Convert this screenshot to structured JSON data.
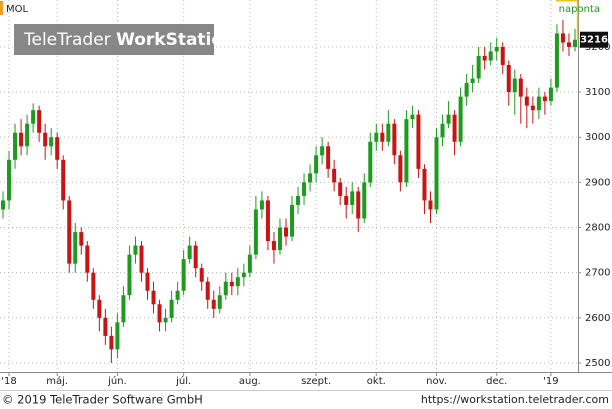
{
  "chart_data": {
    "type": "candlestick",
    "title": "MOL",
    "subtitle": "naponta",
    "logo_brand": "TeleTrader",
    "logo_product": "WorkStation",
    "categories": [
      null,
      "'18",
      null,
      null,
      null,
      null,
      null,
      null,
      null,
      "máj.",
      null,
      null,
      null,
      null,
      null,
      null,
      null,
      null,
      null,
      "jún.",
      null,
      null,
      null,
      null,
      null,
      null,
      null,
      null,
      null,
      null,
      "júl.",
      null,
      null,
      null,
      null,
      null,
      null,
      null,
      null,
      null,
      null,
      "aug.",
      null,
      null,
      null,
      null,
      null,
      null,
      null,
      null,
      null,
      null,
      "szept.",
      null,
      null,
      null,
      null,
      null,
      null,
      null,
      null,
      null,
      "okt.",
      null,
      null,
      null,
      null,
      null,
      null,
      null,
      null,
      null,
      "nov.",
      null,
      null,
      null,
      null,
      null,
      null,
      null,
      null,
      null,
      "dec.",
      null,
      null,
      null,
      null,
      null,
      null,
      null,
      null,
      "'19",
      null,
      null,
      null,
      null
    ],
    "open": [
      2840,
      2860,
      2950,
      3010,
      2980,
      3030,
      3060,
      3010,
      2980,
      3000,
      2950,
      2860,
      2720,
      2790,
      2760,
      2700,
      2640,
      2600,
      2560,
      2530,
      2590,
      2650,
      2740,
      2760,
      2700,
      2660,
      2630,
      2590,
      2600,
      2640,
      2660,
      2730,
      2760,
      2710,
      2680,
      2640,
      2620,
      2650,
      2680,
      2670,
      2690,
      2700,
      2740,
      2840,
      2860,
      2770,
      2750,
      2800,
      2780,
      2850,
      2870,
      2900,
      2920,
      2960,
      2980,
      2930,
      2900,
      2870,
      2850,
      2880,
      2820,
      2900,
      2990,
      3010,
      2990,
      3030,
      2960,
      2900,
      3040,
      3050,
      2930,
      2860,
      2840,
      3000,
      3030,
      3050,
      2990,
      3090,
      3120,
      3130,
      3180,
      3170,
      3190,
      3200,
      3160,
      3100,
      3130,
      3090,
      3070,
      3060,
      3090,
      3080,
      3110,
      3230,
      3210,
      3200
    ],
    "high": [
      2880,
      2970,
      3030,
      3040,
      3050,
      3075,
      3070,
      3030,
      3020,
      3010,
      2960,
      2870,
      2810,
      2800,
      2770,
      2710,
      2650,
      2620,
      2580,
      2610,
      2670,
      2760,
      2780,
      2770,
      2710,
      2680,
      2640,
      2620,
      2660,
      2680,
      2750,
      2780,
      2770,
      2720,
      2690,
      2660,
      2670,
      2700,
      2700,
      2710,
      2720,
      2760,
      2870,
      2880,
      2870,
      2790,
      2820,
      2820,
      2870,
      2890,
      2920,
      2940,
      2980,
      3000,
      2990,
      2950,
      2910,
      2890,
      2900,
      2890,
      2920,
      3010,
      3030,
      3030,
      3060,
      3040,
      2970,
      3060,
      3070,
      3060,
      2940,
      2880,
      3020,
      3050,
      3080,
      3060,
      3110,
      3140,
      3160,
      3200,
      3200,
      3210,
      3220,
      3210,
      3170,
      3150,
      3140,
      3110,
      3090,
      3110,
      3100,
      3130,
      3250,
      3260,
      3230,
      3240
    ],
    "low": [
      2820,
      2840,
      2930,
      2960,
      2960,
      3010,
      2990,
      2950,
      2960,
      2930,
      2840,
      2700,
      2700,
      2740,
      2680,
      2620,
      2570,
      2540,
      2500,
      2510,
      2580,
      2640,
      2720,
      2680,
      2640,
      2610,
      2570,
      2570,
      2590,
      2630,
      2650,
      2720,
      2690,
      2660,
      2620,
      2600,
      2610,
      2640,
      2650,
      2650,
      2670,
      2690,
      2730,
      2820,
      2750,
      2720,
      2740,
      2760,
      2770,
      2830,
      2850,
      2880,
      2900,
      2940,
      2910,
      2880,
      2850,
      2820,
      2830,
      2790,
      2810,
      2890,
      2970,
      2970,
      2980,
      2940,
      2880,
      2890,
      3020,
      2910,
      2830,
      2810,
      2830,
      2980,
      3020,
      2960,
      2980,
      3070,
      3100,
      3120,
      3150,
      3160,
      3170,
      3140,
      3070,
      3050,
      3030,
      3020,
      3030,
      3040,
      3050,
      3070,
      3100,
      3190,
      3180,
      3190
    ],
    "close": [
      2860,
      2950,
      3010,
      2980,
      3030,
      3060,
      3010,
      2980,
      3000,
      2950,
      2860,
      2720,
      2790,
      2760,
      2700,
      2640,
      2600,
      2560,
      2530,
      2590,
      2650,
      2740,
      2760,
      2700,
      2660,
      2630,
      2590,
      2600,
      2640,
      2660,
      2730,
      2760,
      2710,
      2680,
      2640,
      2620,
      2650,
      2680,
      2670,
      2690,
      2700,
      2740,
      2840,
      2860,
      2770,
      2750,
      2800,
      2780,
      2850,
      2870,
      2900,
      2920,
      2960,
      2980,
      2930,
      2900,
      2870,
      2850,
      2880,
      2820,
      2900,
      2990,
      3010,
      2990,
      3030,
      2960,
      2900,
      3040,
      3050,
      2930,
      2860,
      2840,
      3000,
      3030,
      3050,
      2990,
      3090,
      3120,
      3130,
      3180,
      3170,
      3190,
      3200,
      3160,
      3100,
      3130,
      3090,
      3070,
      3060,
      3090,
      3080,
      3110,
      3230,
      3210,
      3200,
      3216
    ],
    "up_color": "#1e9a1e",
    "down_color": "#c81414",
    "ylim": [
      2480,
      3304
    ],
    "yticks": [
      2500,
      2600,
      2700,
      2800,
      2900,
      3000,
      3100,
      3200
    ],
    "grid": true
  },
  "footer": {
    "copyright": "© 2019 TeleTrader Software GmbH",
    "url": "https://workstation.teletrader.com"
  }
}
